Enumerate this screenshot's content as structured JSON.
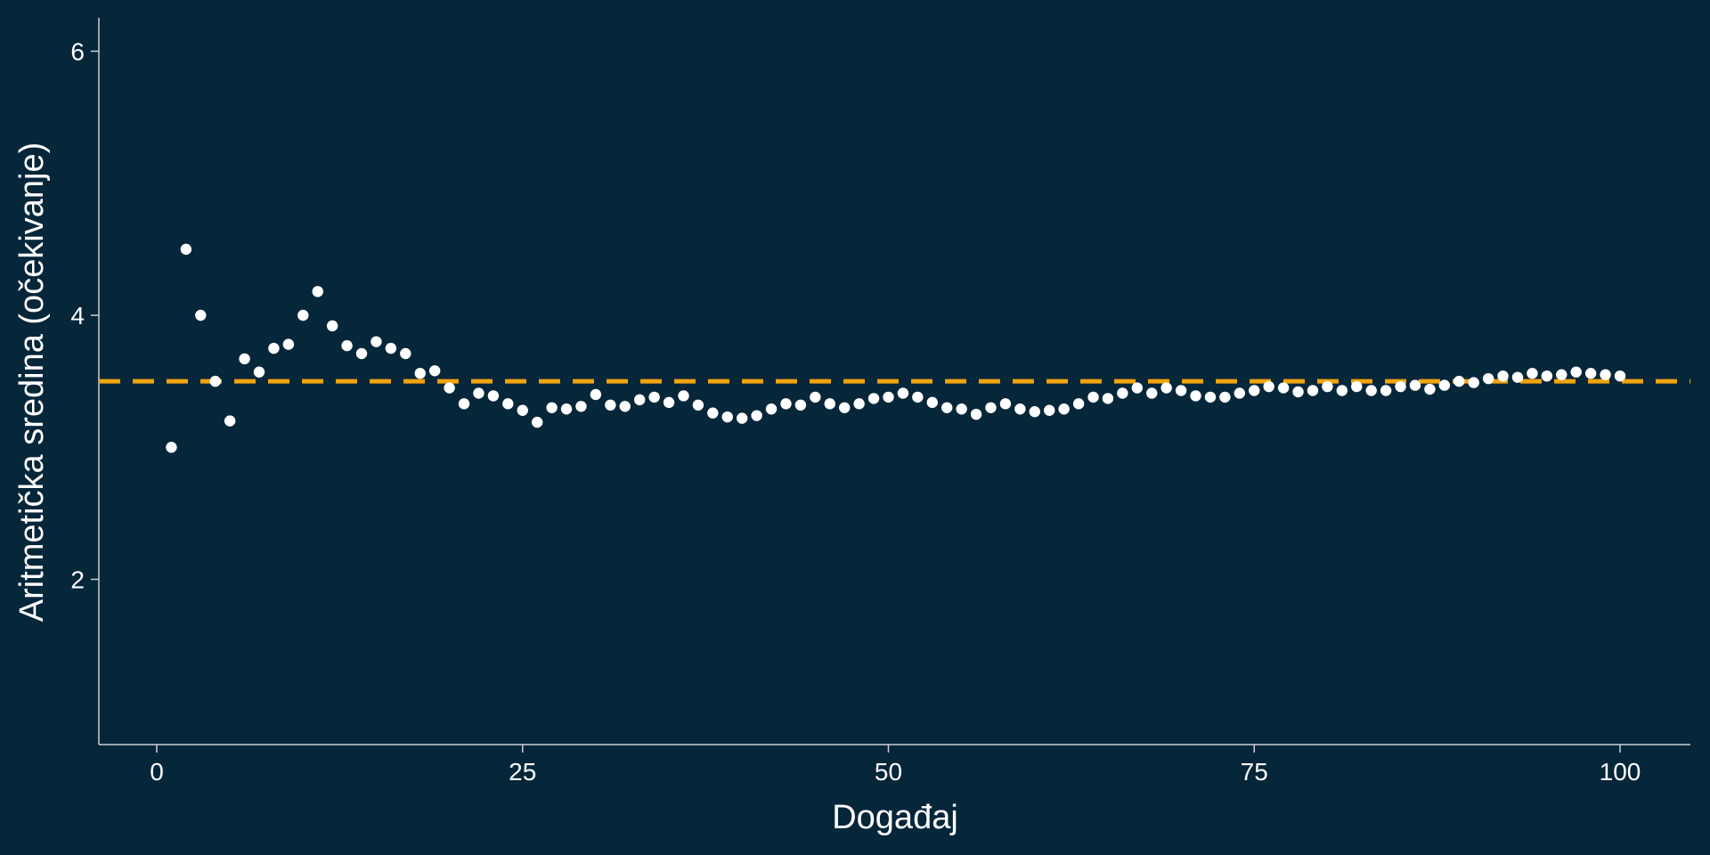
{
  "chart_data": {
    "type": "scatter",
    "xlabel": "Događaj",
    "ylabel": "Aritmetička sredina (očekivanje)",
    "xlim": [
      -4,
      105
    ],
    "ylim": [
      0.75,
      6.25
    ],
    "xticks": [
      0,
      25,
      50,
      75,
      100
    ],
    "yticks": [
      2,
      4,
      6
    ],
    "grid": false,
    "background_color": "#06263a",
    "point_color": "#ffffff",
    "reference_line": {
      "y": 3.5,
      "color": "#f0a30a",
      "style": "dashed"
    },
    "x": [
      1,
      2,
      3,
      4,
      5,
      6,
      7,
      8,
      9,
      10,
      11,
      12,
      13,
      14,
      15,
      16,
      17,
      18,
      19,
      20,
      21,
      22,
      23,
      24,
      25,
      26,
      27,
      28,
      29,
      30,
      31,
      32,
      33,
      34,
      35,
      36,
      37,
      38,
      39,
      40,
      41,
      42,
      43,
      44,
      45,
      46,
      47,
      48,
      49,
      50,
      51,
      52,
      53,
      54,
      55,
      56,
      57,
      58,
      59,
      60,
      61,
      62,
      63,
      64,
      65,
      66,
      67,
      68,
      69,
      70,
      71,
      72,
      73,
      74,
      75,
      76,
      77,
      78,
      79,
      80,
      81,
      82,
      83,
      84,
      85,
      86,
      87,
      88,
      89,
      90,
      91,
      92,
      93,
      94,
      95,
      96,
      97,
      98,
      99,
      100
    ],
    "y": [
      3.0,
      4.5,
      4.0,
      3.5,
      3.2,
      3.67,
      3.57,
      3.75,
      3.78,
      4.0,
      4.18,
      3.92,
      3.77,
      3.71,
      3.8,
      3.75,
      3.71,
      3.56,
      3.58,
      3.45,
      3.33,
      3.41,
      3.39,
      3.33,
      3.28,
      3.19,
      3.3,
      3.29,
      3.31,
      3.4,
      3.32,
      3.31,
      3.36,
      3.38,
      3.34,
      3.39,
      3.32,
      3.26,
      3.23,
      3.22,
      3.24,
      3.29,
      3.33,
      3.32,
      3.38,
      3.33,
      3.3,
      3.33,
      3.37,
      3.38,
      3.41,
      3.38,
      3.34,
      3.3,
      3.29,
      3.25,
      3.3,
      3.33,
      3.29,
      3.27,
      3.28,
      3.29,
      3.33,
      3.38,
      3.37,
      3.41,
      3.45,
      3.41,
      3.45,
      3.43,
      3.39,
      3.38,
      3.38,
      3.41,
      3.43,
      3.46,
      3.45,
      3.42,
      3.43,
      3.46,
      3.43,
      3.46,
      3.43,
      3.43,
      3.46,
      3.47,
      3.44,
      3.47,
      3.5,
      3.49,
      3.52,
      3.54,
      3.53,
      3.56,
      3.54,
      3.55,
      3.57,
      3.56,
      3.55,
      3.54
    ]
  }
}
